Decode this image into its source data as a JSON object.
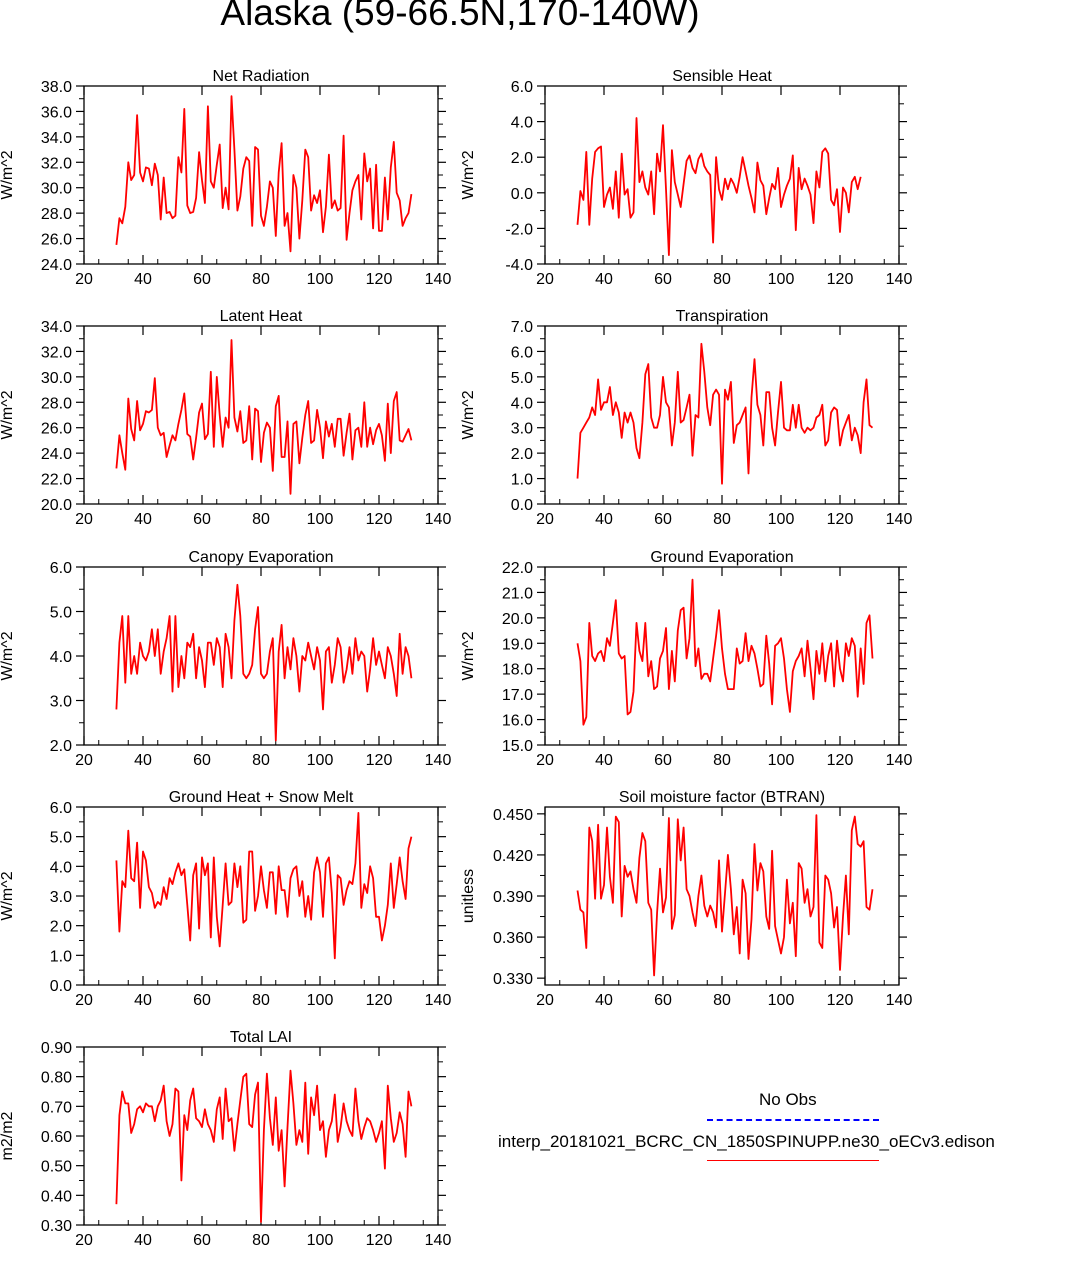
{
  "title": "Alaska (59-66.5N,170-140W)",
  "colors": {
    "model": "#ff0000",
    "obs": "#0000ff",
    "axis": "#000000"
  },
  "legend": {
    "obs_label": "No Obs",
    "model_label": "interp_20181021_BCRC_CN_1850SPINUPP.ne30_oECv3.edison"
  },
  "chart_data": [
    {
      "type": "line",
      "title": "Net Radiation",
      "ylabel": "W/m^2",
      "xlim": [
        20,
        140
      ],
      "ylim": [
        24,
        38
      ],
      "xticks": [
        20,
        40,
        60,
        80,
        100,
        120,
        140
      ],
      "xtick_labels": [
        "20",
        "40",
        "60",
        "80",
        "100",
        "120",
        "140"
      ],
      "yticks": [
        24,
        26,
        28,
        30,
        32,
        34,
        36,
        38
      ],
      "ytick_labels": [
        "24.0",
        "26.0",
        "28.0",
        "30.0",
        "32.0",
        "34.0",
        "36.0",
        "38.0"
      ],
      "x_start": 31,
      "values": [
        25.5,
        27.6,
        27.2,
        28.5,
        32.0,
        30.6,
        31.0,
        35.7,
        31.2,
        30.5,
        31.6,
        31.5,
        30.2,
        31.9,
        31.0,
        27.5,
        30.8,
        28.0,
        28.1,
        27.6,
        27.8,
        32.4,
        31.2,
        36.2,
        28.6,
        28.0,
        28.1,
        29.2,
        32.8,
        30.6,
        28.8,
        36.4,
        30.5,
        30.0,
        31.8,
        33.4,
        28.4,
        30.0,
        28.3,
        37.2,
        33.0,
        28.2,
        29.3,
        31.5,
        32.4,
        32.1,
        27.0,
        33.2,
        33.0,
        27.8,
        27.0,
        28.5,
        30.5,
        30.0,
        26.2,
        31.2,
        33.5,
        27.0,
        28.0,
        25.0,
        31.0,
        30.0,
        26.0,
        29.0,
        33.0,
        32.4,
        28.2,
        29.4,
        28.8,
        29.8,
        26.5,
        28.5,
        32.6,
        28.4,
        29.0,
        28.2,
        28.4,
        34.1,
        25.9,
        28.0,
        29.8,
        30.5,
        31.0,
        27.5,
        32.7,
        30.5,
        31.5,
        26.8,
        31.8,
        26.6,
        26.6,
        30.8,
        27.5,
        31.6,
        33.6,
        29.6,
        29.0,
        27.0,
        27.6,
        28.0,
        29.5
      ]
    },
    {
      "type": "line",
      "title": "Sensible Heat",
      "ylabel": "W/m^2",
      "xlim": [
        20,
        140
      ],
      "ylim": [
        -4,
        6
      ],
      "xticks": [
        20,
        40,
        60,
        80,
        100,
        120,
        140
      ],
      "xtick_labels": [
        "20",
        "40",
        "60",
        "80",
        "100",
        "120",
        "140"
      ],
      "yticks": [
        -4,
        -2,
        0,
        2,
        4,
        6
      ],
      "ytick_labels": [
        "-4.0",
        "-2.0",
        "0.0",
        "2.0",
        "4.0",
        "6.0"
      ],
      "x_start": 31,
      "values": [
        -1.8,
        0.1,
        -0.4,
        2.3,
        -1.8,
        0.8,
        2.3,
        2.5,
        2.6,
        -0.8,
        -0.1,
        0.3,
        -0.9,
        1.2,
        -1.4,
        2.2,
        -0.1,
        0.2,
        -1.4,
        -1.1,
        4.2,
        0.6,
        1.2,
        0.3,
        -0.1,
        1.2,
        -1.2,
        2.2,
        1.2,
        3.8,
        0.2,
        -3.5,
        2.4,
        0.6,
        -0.1,
        -0.8,
        0.5,
        1.8,
        2.1,
        1.4,
        1.1,
        1.9,
        2.2,
        1.5,
        1.2,
        1.0,
        -2.8,
        2.0,
        0.2,
        -0.4,
        0.8,
        0.2,
        0.8,
        0.5,
        0.0,
        0.9,
        2.0,
        1.2,
        0.4,
        -0.3,
        -1.1,
        1.7,
        0.7,
        0.4,
        -1.2,
        -0.3,
        0.5,
        0.2,
        1.4,
        -0.8,
        -0.1,
        0.4,
        0.8,
        2.1,
        -2.1,
        1.4,
        0.2,
        0.8,
        0.4,
        -0.1,
        -1.7,
        1.2,
        0.3,
        2.3,
        2.5,
        2.2,
        -0.4,
        -0.7,
        0.2,
        -2.2,
        0.3,
        0.0,
        -1.1,
        0.6,
        0.9,
        0.2,
        0.9
      ]
    },
    {
      "type": "line",
      "title": "Latent Heat",
      "ylabel": "W/m^2",
      "xlim": [
        20,
        140
      ],
      "ylim": [
        20,
        34
      ],
      "xticks": [
        20,
        40,
        60,
        80,
        100,
        120,
        140
      ],
      "xtick_labels": [
        "20",
        "40",
        "60",
        "80",
        "100",
        "120",
        "140"
      ],
      "yticks": [
        20,
        22,
        24,
        26,
        28,
        30,
        32,
        34
      ],
      "ytick_labels": [
        "20.0",
        "22.0",
        "24.0",
        "26.0",
        "28.0",
        "30.0",
        "32.0",
        "34.0"
      ],
      "x_start": 31,
      "values": [
        22.8,
        25.4,
        24.0,
        22.7,
        28.3,
        25.9,
        25.0,
        28.1,
        25.8,
        26.3,
        27.3,
        27.2,
        27.4,
        29.9,
        26.0,
        25.4,
        25.6,
        23.7,
        24.6,
        25.4,
        25.0,
        26.3,
        27.4,
        28.7,
        25.5,
        25.3,
        23.5,
        25.2,
        27.2,
        27.9,
        25.1,
        25.5,
        30.4,
        24.5,
        30.0,
        27.0,
        24.5,
        26.8,
        26.0,
        32.9,
        26.8,
        25.7,
        27.3,
        24.8,
        25.0,
        27.7,
        23.5,
        27.5,
        27.3,
        23.3,
        25.6,
        26.4,
        26.0,
        22.6,
        27.7,
        28.5,
        23.7,
        23.7,
        26.5,
        20.8,
        26.3,
        26.5,
        23.2,
        25.2,
        27.0,
        28.1,
        24.8,
        25.0,
        27.4,
        26.0,
        23.6,
        26.5,
        25.3,
        26.3,
        24.5,
        26.7,
        26.7,
        23.8,
        25.6,
        27.1,
        23.5,
        25.8,
        26.0,
        24.5,
        28.0,
        24.5,
        26.0,
        24.7,
        25.8,
        26.3,
        25.4,
        23.4,
        27.9,
        24.0,
        28.1,
        28.8,
        25.0,
        24.9,
        25.4,
        25.9,
        25.0
      ]
    },
    {
      "type": "line",
      "title": "Transpiration",
      "ylabel": "W/m^2",
      "xlim": [
        20,
        140
      ],
      "ylim": [
        0,
        7
      ],
      "xticks": [
        20,
        40,
        60,
        80,
        100,
        120,
        140
      ],
      "xtick_labels": [
        "20",
        "40",
        "60",
        "80",
        "100",
        "120",
        "140"
      ],
      "yticks": [
        0,
        1,
        2,
        3,
        4,
        5,
        6,
        7
      ],
      "ytick_labels": [
        "0.0",
        "1.0",
        "2.0",
        "3.0",
        "4.0",
        "5.0",
        "6.0",
        "7.0"
      ],
      "x_start": 31,
      "values": [
        1.0,
        2.8,
        3.0,
        3.2,
        3.4,
        3.8,
        3.5,
        4.9,
        3.7,
        4.0,
        4.0,
        4.6,
        3.5,
        4.0,
        3.6,
        2.6,
        3.6,
        3.2,
        3.6,
        3.2,
        2.2,
        1.8,
        3.2,
        5.1,
        5.5,
        3.4,
        3.0,
        3.0,
        3.5,
        5.0,
        4.0,
        3.8,
        2.3,
        3.2,
        5.2,
        3.2,
        3.3,
        3.8,
        4.3,
        1.9,
        3.5,
        3.4,
        6.3,
        5.2,
        3.8,
        3.1,
        4.3,
        4.5,
        4.3,
        0.8,
        4.5,
        4.1,
        4.8,
        2.4,
        3.1,
        3.2,
        3.5,
        3.8,
        1.2,
        4.2,
        5.7,
        3.9,
        3.5,
        2.3,
        4.4,
        4.4,
        3.0,
        2.3,
        3.6,
        4.8,
        3.0,
        2.9,
        2.9,
        3.9,
        3.0,
        3.9,
        3.0,
        2.8,
        3.0,
        2.9,
        3.0,
        3.4,
        3.5,
        3.9,
        2.3,
        2.5,
        3.6,
        3.8,
        3.7,
        2.3,
        2.9,
        3.2,
        3.5,
        2.5,
        3.0,
        2.7,
        2.0,
        4.0,
        4.9,
        3.1,
        3.0
      ]
    },
    {
      "type": "line",
      "title": "Canopy Evaporation",
      "ylabel": "W/m^2",
      "xlim": [
        20,
        140
      ],
      "ylim": [
        2,
        6
      ],
      "xticks": [
        20,
        40,
        60,
        80,
        100,
        120,
        140
      ],
      "xtick_labels": [
        "20",
        "40",
        "60",
        "80",
        "100",
        "120",
        "140"
      ],
      "yticks": [
        2,
        3,
        4,
        5,
        6
      ],
      "ytick_labels": [
        "2.0",
        "3.0",
        "4.0",
        "5.0",
        "6.0"
      ],
      "x_start": 31,
      "values": [
        2.8,
        4.3,
        4.9,
        3.4,
        4.9,
        3.6,
        4.0,
        3.6,
        4.3,
        4.0,
        3.9,
        4.1,
        4.6,
        4.0,
        4.6,
        3.6,
        4.1,
        4.4,
        4.9,
        3.2,
        4.9,
        3.3,
        4.0,
        3.5,
        4.3,
        4.2,
        4.5,
        3.5,
        4.2,
        3.9,
        3.3,
        4.3,
        4.3,
        3.8,
        4.4,
        4.2,
        3.3,
        4.5,
        4.2,
        3.5,
        4.8,
        5.6,
        4.9,
        3.6,
        3.5,
        3.6,
        3.8,
        4.6,
        5.1,
        3.6,
        3.5,
        3.6,
        4.1,
        4.4,
        2.1,
        4.1,
        4.7,
        3.5,
        4.2,
        3.7,
        4.4,
        4.0,
        3.2,
        4.0,
        3.9,
        4.3,
        4.0,
        3.7,
        4.2,
        3.9,
        2.8,
        4.1,
        4.2,
        3.4,
        3.8,
        4.4,
        4.2,
        3.4,
        3.7,
        4.2,
        3.6,
        4.4,
        3.9,
        4.1,
        4.0,
        3.2,
        3.7,
        4.4,
        3.8,
        4.1,
        3.8,
        3.5,
        4.2,
        4.0,
        3.6,
        3.1,
        4.5,
        3.6,
        4.2,
        4.0,
        3.5
      ]
    },
    {
      "type": "line",
      "title": "Ground Evaporation",
      "ylabel": "W/m^2",
      "xlim": [
        20,
        140
      ],
      "ylim": [
        15,
        22
      ],
      "xticks": [
        20,
        40,
        60,
        80,
        100,
        120,
        140
      ],
      "xtick_labels": [
        "20",
        "40",
        "60",
        "80",
        "100",
        "120",
        "140"
      ],
      "yticks": [
        15,
        16,
        17,
        18,
        19,
        20,
        21,
        22
      ],
      "ytick_labels": [
        "15.0",
        "16.0",
        "17.0",
        "18.0",
        "19.0",
        "20.0",
        "21.0",
        "22.0"
      ],
      "x_start": 31,
      "values": [
        19.0,
        18.3,
        15.8,
        16.1,
        19.8,
        18.5,
        18.3,
        18.6,
        18.7,
        18.3,
        19.2,
        18.9,
        19.8,
        20.7,
        18.6,
        18.4,
        18.5,
        16.2,
        16.3,
        17.1,
        19.8,
        18.7,
        18.3,
        19.8,
        17.7,
        18.3,
        17.2,
        17.3,
        18.4,
        18.7,
        19.6,
        17.2,
        18.7,
        17.5,
        19.5,
        20.3,
        20.4,
        18.4,
        19.2,
        21.5,
        18.1,
        18.8,
        17.6,
        17.8,
        17.8,
        17.5,
        18.4,
        19.3,
        20.3,
        18.8,
        17.8,
        17.2,
        17.2,
        17.2,
        18.8,
        18.2,
        18.3,
        19.4,
        18.3,
        18.9,
        18.6,
        18.0,
        17.3,
        17.4,
        19.3,
        18.2,
        16.6,
        18.9,
        19.0,
        19.2,
        18.4,
        17.2,
        16.3,
        17.9,
        18.3,
        18.5,
        18.8,
        17.7,
        19.1,
        18.0,
        16.8,
        18.7,
        17.8,
        19.0,
        17.5,
        18.5,
        19.0,
        17.3,
        19.1,
        18.0,
        17.5,
        19.0,
        18.5,
        19.2,
        18.9,
        16.9,
        18.8,
        17.4,
        19.8,
        20.1,
        18.4
      ]
    },
    {
      "type": "line",
      "title": "Ground Heat + Snow Melt",
      "ylabel": "W/m^2",
      "xlim": [
        20,
        140
      ],
      "ylim": [
        0,
        6
      ],
      "xticks": [
        20,
        40,
        60,
        80,
        100,
        120,
        140
      ],
      "xtick_labels": [
        "20",
        "40",
        "60",
        "80",
        "100",
        "120",
        "140"
      ],
      "yticks": [
        0,
        1,
        2,
        3,
        4,
        5,
        6
      ],
      "ytick_labels": [
        "0.0",
        "1.0",
        "2.0",
        "3.0",
        "4.0",
        "5.0",
        "6.0"
      ],
      "x_start": 31,
      "values": [
        4.2,
        1.8,
        3.5,
        3.3,
        5.2,
        3.6,
        3.5,
        4.8,
        2.6,
        4.5,
        4.2,
        3.3,
        3.1,
        2.6,
        2.8,
        2.7,
        3.3,
        2.9,
        3.6,
        3.4,
        3.8,
        4.1,
        3.7,
        3.9,
        2.7,
        1.5,
        3.7,
        4.1,
        1.9,
        4.3,
        3.7,
        4.1,
        1.6,
        4.3,
        2.3,
        1.3,
        2.7,
        4.1,
        2.7,
        2.8,
        4.1,
        3.3,
        4.0,
        2.1,
        2.2,
        4.5,
        4.5,
        2.5,
        3.0,
        4.0,
        3.2,
        2.6,
        3.8,
        3.8,
        2.4,
        4.0,
        3.2,
        3.2,
        2.3,
        3.6,
        3.9,
        4.0,
        3.0,
        3.5,
        2.3,
        3.0,
        2.2,
        3.8,
        4.3,
        3.8,
        2.3,
        4.1,
        4.3,
        3.1,
        0.9,
        3.7,
        3.6,
        2.7,
        3.2,
        3.5,
        3.4,
        4.1,
        5.8,
        2.6,
        3.4,
        3.1,
        4.0,
        3.6,
        2.3,
        2.3,
        1.5,
        2.0,
        2.7,
        4.1,
        2.6,
        3.4,
        4.3,
        3.5,
        2.9,
        4.6,
        5.0
      ]
    },
    {
      "type": "line",
      "title": "Soil moisture factor (BTRAN)",
      "ylabel": "unitless",
      "xlim": [
        20,
        140
      ],
      "ylim": [
        0.325,
        0.455
      ],
      "xticks": [
        20,
        40,
        60,
        80,
        100,
        120,
        140
      ],
      "xtick_labels": [
        "20",
        "40",
        "60",
        "80",
        "100",
        "120",
        "140"
      ],
      "yticks": [
        0.33,
        0.36,
        0.39,
        0.42,
        0.45
      ],
      "ytick_labels": [
        "0.330",
        "0.360",
        "0.390",
        "0.420",
        "0.450"
      ],
      "x_start": 31,
      "values": [
        0.394,
        0.38,
        0.378,
        0.352,
        0.44,
        0.43,
        0.388,
        0.442,
        0.388,
        0.398,
        0.44,
        0.404,
        0.385,
        0.448,
        0.444,
        0.375,
        0.412,
        0.404,
        0.408,
        0.395,
        0.385,
        0.418,
        0.436,
        0.43,
        0.385,
        0.38,
        0.332,
        0.378,
        0.41,
        0.378,
        0.389,
        0.447,
        0.366,
        0.376,
        0.446,
        0.416,
        0.44,
        0.395,
        0.39,
        0.378,
        0.368,
        0.39,
        0.405,
        0.383,
        0.375,
        0.383,
        0.378,
        0.367,
        0.416,
        0.364,
        0.392,
        0.42,
        0.395,
        0.362,
        0.382,
        0.348,
        0.402,
        0.392,
        0.344,
        0.373,
        0.428,
        0.394,
        0.414,
        0.408,
        0.375,
        0.366,
        0.423,
        0.368,
        0.358,
        0.348,
        0.36,
        0.402,
        0.37,
        0.385,
        0.346,
        0.414,
        0.41,
        0.385,
        0.395,
        0.375,
        0.382,
        0.449,
        0.356,
        0.352,
        0.405,
        0.402,
        0.392,
        0.367,
        0.382,
        0.336,
        0.375,
        0.405,
        0.362,
        0.438,
        0.448,
        0.428,
        0.426,
        0.43,
        0.382,
        0.38,
        0.395
      ]
    },
    {
      "type": "line",
      "title": "Total LAI",
      "ylabel": "m2/m2",
      "xlim": [
        20,
        140
      ],
      "ylim": [
        0.3,
        0.9
      ],
      "xticks": [
        20,
        40,
        60,
        80,
        100,
        120,
        140
      ],
      "xtick_labels": [
        "20",
        "40",
        "60",
        "80",
        "100",
        "120",
        "140"
      ],
      "yticks": [
        0.3,
        0.4,
        0.5,
        0.6,
        0.7,
        0.8,
        0.9
      ],
      "ytick_labels": [
        "0.30",
        "0.40",
        "0.50",
        "0.60",
        "0.70",
        "0.80",
        "0.90"
      ],
      "x_start": 31,
      "values": [
        0.37,
        0.67,
        0.75,
        0.71,
        0.71,
        0.61,
        0.64,
        0.69,
        0.7,
        0.68,
        0.71,
        0.7,
        0.7,
        0.65,
        0.7,
        0.72,
        0.77,
        0.65,
        0.6,
        0.64,
        0.76,
        0.75,
        0.45,
        0.67,
        0.62,
        0.72,
        0.76,
        0.66,
        0.65,
        0.63,
        0.69,
        0.64,
        0.62,
        0.58,
        0.69,
        0.73,
        0.59,
        0.76,
        0.65,
        0.66,
        0.55,
        0.64,
        0.72,
        0.8,
        0.81,
        0.64,
        0.63,
        0.74,
        0.78,
        0.31,
        0.62,
        0.81,
        0.66,
        0.57,
        0.73,
        0.55,
        0.62,
        0.43,
        0.63,
        0.82,
        0.71,
        0.57,
        0.62,
        0.58,
        0.78,
        0.54,
        0.73,
        0.67,
        0.77,
        0.62,
        0.65,
        0.53,
        0.62,
        0.65,
        0.74,
        0.58,
        0.63,
        0.71,
        0.65,
        0.62,
        0.6,
        0.76,
        0.65,
        0.59,
        0.63,
        0.66,
        0.65,
        0.62,
        0.58,
        0.61,
        0.65,
        0.49,
        0.77,
        0.66,
        0.58,
        0.61,
        0.68,
        0.64,
        0.53,
        0.75,
        0.7
      ]
    }
  ]
}
